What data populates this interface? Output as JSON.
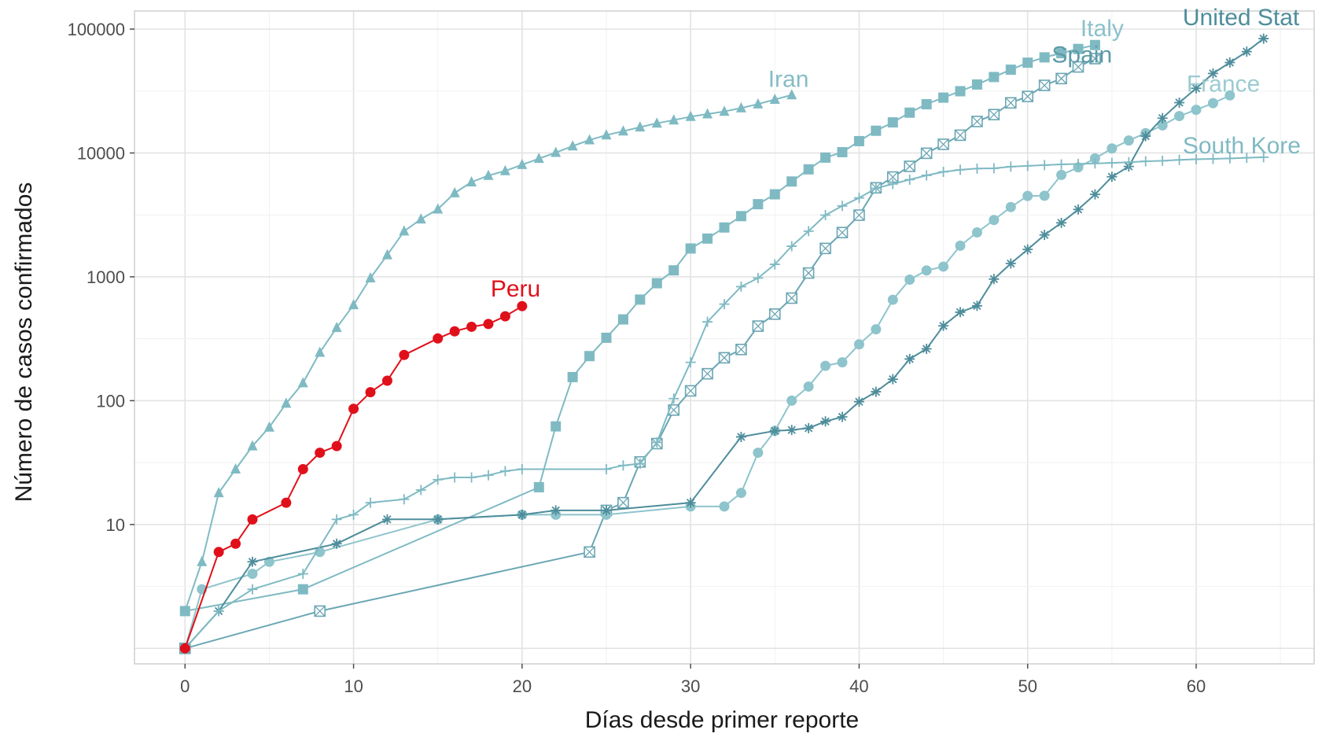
{
  "chart_data": {
    "type": "line",
    "xlabel": "Días desde primer reporte",
    "ylabel": "Número de casos confirmados",
    "xlim": [
      -3,
      67
    ],
    "ylim": [
      0.75,
      140000
    ],
    "yscale": "log10",
    "x_ticks": [
      0,
      10,
      20,
      30,
      40,
      50,
      60
    ],
    "y_ticks": [
      10,
      100,
      1000,
      10000,
      100000
    ],
    "y_tick_labels": [
      "10",
      "100",
      "1000",
      "10000",
      "100000"
    ],
    "grid": true,
    "series": [
      {
        "name": "Iran",
        "color": "#7fbac3",
        "marker": "triangle",
        "x": [
          0,
          1,
          2,
          3,
          4,
          5,
          6,
          7,
          8,
          9,
          10,
          11,
          12,
          13,
          14,
          15,
          16,
          17,
          18,
          19,
          20,
          21,
          22,
          23,
          24,
          25,
          26,
          27,
          28,
          29,
          30,
          31,
          32,
          33,
          34,
          35,
          36
        ],
        "y": [
          2,
          5,
          18,
          28,
          43,
          61,
          95,
          139,
          245,
          388,
          593,
          978,
          1501,
          2336,
          2922,
          3513,
          4747,
          5823,
          6566,
          7161,
          8042,
          9000,
          10075,
          11364,
          12729,
          13938,
          14991,
          16169,
          17361,
          18407,
          19644,
          20610,
          21638,
          23049,
          24811,
          27017,
          29406
        ]
      },
      {
        "name": "Italy",
        "color": "#7fbac3",
        "marker": "square",
        "x": [
          0,
          7,
          21,
          22,
          23,
          24,
          25,
          26,
          27,
          28,
          29,
          30,
          31,
          32,
          33,
          34,
          35,
          36,
          37,
          38,
          39,
          40,
          41,
          42,
          43,
          44,
          45,
          46,
          47,
          48,
          49,
          50,
          51,
          52,
          53,
          54
        ],
        "y": [
          2,
          3,
          20,
          62,
          155,
          229,
          322,
          453,
          655,
          888,
          1128,
          1694,
          2036,
          2502,
          3089,
          3858,
          4636,
          5883,
          7375,
          9172,
          10149,
          12462,
          15113,
          17660,
          21157,
          24747,
          27980,
          31506,
          35713,
          41035,
          47021,
          53578,
          59138,
          63927,
          69176,
          74386
        ]
      },
      {
        "name": "Spain",
        "color": "#6aa6b3",
        "marker": "boxx",
        "x": [
          0,
          8,
          24,
          25,
          26,
          27,
          28,
          29,
          30,
          31,
          32,
          33,
          34,
          35,
          36,
          37,
          38,
          39,
          40,
          41,
          42,
          43,
          44,
          45,
          46,
          47,
          48,
          49,
          50,
          51,
          52,
          53,
          54
        ],
        "y": [
          1,
          2,
          6,
          13,
          15,
          32,
          45,
          84,
          120,
          165,
          222,
          259,
          400,
          500,
          673,
          1073,
          1695,
          2277,
          3146,
          5232,
          6391,
          7798,
          9942,
          11748,
          13910,
          17963,
          20410,
          25374,
          28603,
          35136,
          39885,
          49515,
          57786
        ]
      },
      {
        "name": "France",
        "color": "#8ec4cc",
        "marker": "circle",
        "x": [
          0,
          1,
          4,
          5,
          8,
          15,
          20,
          22,
          25,
          30,
          32,
          33,
          34,
          35,
          36,
          37,
          38,
          39,
          40,
          41,
          42,
          43,
          44,
          45,
          46,
          47,
          48,
          49,
          50,
          51,
          52,
          53,
          54,
          55,
          56,
          57,
          58,
          59,
          60,
          61,
          62
        ],
        "y": [
          1,
          3,
          4,
          5,
          6,
          11,
          12,
          12,
          12,
          14,
          14,
          18,
          38,
          57,
          100,
          130,
          191,
          204,
          285,
          377,
          653,
          949,
          1126,
          1209,
          1784,
          2281,
          2876,
          3661,
          4499,
          4513,
          6650,
          7652,
          9043,
          10871,
          12612,
          14459,
          16689,
          19856,
          22304,
          25233,
          29155
        ]
      },
      {
        "name": "United Stat",
        "color": "#4e8d9b",
        "marker": "asterisk",
        "x": [
          0,
          2,
          4,
          9,
          12,
          15,
          20,
          22,
          25,
          30,
          33,
          35,
          36,
          37,
          38,
          39,
          40,
          41,
          42,
          43,
          44,
          45,
          46,
          47,
          48,
          49,
          50,
          51,
          52,
          53,
          54,
          55,
          56,
          57,
          58,
          59,
          60,
          61,
          62,
          63,
          64
        ],
        "y": [
          1,
          2,
          5,
          7,
          11,
          11,
          12,
          13,
          13,
          15,
          51,
          57,
          58,
          60,
          68,
          74,
          98,
          118,
          149,
          217,
          262,
          402,
          518,
          583,
          959,
          1281,
          1663,
          2179,
          2727,
          3499,
          4632,
          6421,
          7783,
          13677,
          19100,
          25489,
          33276,
          43847,
          53740,
          65778,
          83836
        ]
      },
      {
        "name": "South Kore",
        "color": "#7fbac3",
        "marker": "plus",
        "x": [
          0,
          2,
          4,
          7,
          9,
          10,
          11,
          13,
          14,
          15,
          16,
          17,
          18,
          19,
          20,
          25,
          26,
          27,
          28,
          29,
          30,
          31,
          32,
          33,
          34,
          35,
          36,
          37,
          38,
          39,
          40,
          41,
          42,
          43,
          44,
          45,
          46,
          47,
          48,
          49,
          50,
          51,
          52,
          53,
          54,
          55,
          56,
          57,
          58,
          59,
          60,
          61,
          62,
          63,
          64
        ],
        "y": [
          1,
          2,
          3,
          4,
          11,
          12,
          15,
          16,
          19,
          23,
          24,
          24,
          25,
          27,
          28,
          28,
          30,
          31,
          46,
          104,
          204,
          433,
          602,
          833,
          977,
          1261,
          1766,
          2337,
          3150,
          3736,
          4335,
          5186,
          5621,
          6088,
          6593,
          7041,
          7313,
          7478,
          7513,
          7755,
          7869,
          7979,
          8086,
          8162,
          8236,
          8320,
          8413,
          8565,
          8652,
          8799,
          8897,
          8961,
          9037,
          9137,
          9241
        ]
      },
      {
        "name": "Peru",
        "color": "#e0101a",
        "marker": "circle",
        "x": [
          0,
          2,
          3,
          4,
          6,
          7,
          8,
          9,
          10,
          11,
          12,
          13,
          15,
          16,
          17,
          18,
          19,
          20
        ],
        "y": [
          1,
          6,
          7,
          11,
          15,
          28,
          38,
          43,
          86,
          117,
          145,
          234,
          318,
          363,
          395,
          416,
          480,
          580
        ]
      }
    ],
    "series_labels": [
      {
        "text": "Iran",
        "x": 36,
        "y": 29406
      },
      {
        "text": "Italy",
        "x": 55,
        "y": 85000
      },
      {
        "text": "Spain",
        "x": 54,
        "y": 62000
      },
      {
        "text": "United Stat",
        "x": 62,
        "y": 90000
      },
      {
        "text": "France",
        "x": 62,
        "y": 29000
      },
      {
        "text": "South Kore",
        "x": 62,
        "y": 9241
      },
      {
        "text": "Peru",
        "x": 20,
        "y": 580
      }
    ]
  }
}
